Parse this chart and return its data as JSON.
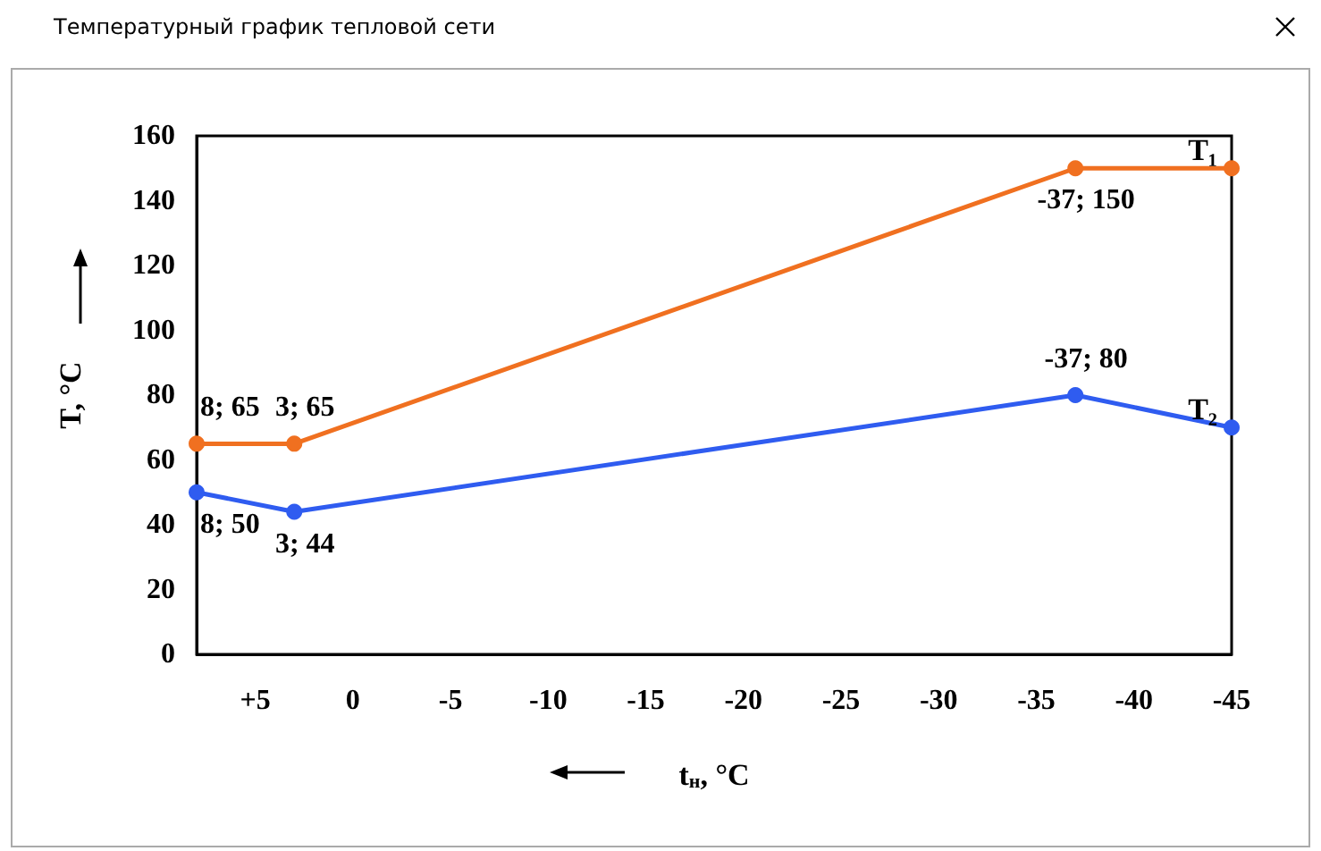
{
  "chart_data": {
    "type": "line",
    "title": "Температурный график тепловой сети",
    "xlabel": "t$_{н}$, °C",
    "ylabel": "T, °C",
    "series": [
      {
        "name": "T₁",
        "color": "#f07020",
        "x": [
          8,
          3,
          -37,
          -45
        ],
        "values": [
          65,
          65,
          150,
          150
        ]
      },
      {
        "name": "T₂",
        "color": "#2f5cf0",
        "x": [
          8,
          3,
          -37,
          -45
        ],
        "values": [
          50,
          44,
          80,
          70
        ]
      }
    ],
    "xlim": [
      8,
      -45
    ],
    "xticks": [
      {
        "value": 5,
        "label": "+5"
      },
      0,
      -5,
      -10,
      -15,
      -20,
      -25,
      -30,
      -35,
      -40,
      -45
    ],
    "ylim": [
      0,
      160
    ],
    "yticks": [
      0,
      20,
      40,
      60,
      80,
      100,
      120,
      140,
      160
    ],
    "annotations": [
      {
        "text": "8; 65",
        "x": 8,
        "y": 65
      },
      {
        "text": "3; 65",
        "x": 3,
        "y": 65
      },
      {
        "text": "-37; 150",
        "x": -37,
        "y": 150
      },
      {
        "text": "-37; 80",
        "x": -37,
        "y": 80
      },
      {
        "text": "8; 50",
        "x": 8,
        "y": 50
      },
      {
        "text": "3; 44",
        "x": 3,
        "y": 44
      }
    ],
    "grid": false,
    "legend": false,
    "marker": "circle",
    "line_style": "solid"
  }
}
